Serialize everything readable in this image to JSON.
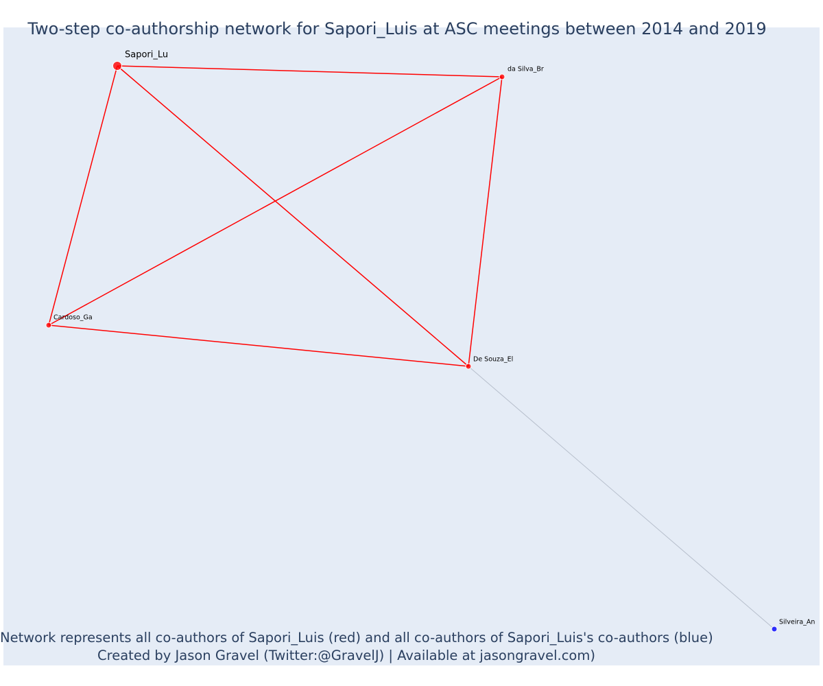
{
  "title": "Two-step co-authorship network for Sapori_Luis at ASC meetings between 2014 and 2019",
  "footer": {
    "line1": "Network represents all co-authors of Sapori_Luis (red) and all co-authors of Sapori_Luis's co-authors (blue)",
    "line2": "Created by Jason Gravel (Twitter:@GravelJ) | Available at jasongravel.com)"
  },
  "colors": {
    "plot_background": "#e5ecf6",
    "direct_coauthor": "#ff0000",
    "second_step_coauthor": "#0000ff",
    "direct_edge": "#ff0000",
    "second_step_edge": "#b7bfcc",
    "text": "#2a3f5f"
  },
  "nodes": [
    {
      "id": "Sapori_Lu",
      "label": "Sapori_Lu",
      "group": "focal"
    },
    {
      "id": "da Silva_Br",
      "label": "da Silva_Br",
      "group": "direct"
    },
    {
      "id": "Cardoso_Ga",
      "label": "Cardoso_Ga",
      "group": "direct"
    },
    {
      "id": "De Souza_El",
      "label": "De Souza_El",
      "group": "direct"
    },
    {
      "id": "Silveira_An",
      "label": "Silveira_An",
      "group": "second"
    }
  ],
  "edges": [
    {
      "source": "Sapori_Lu",
      "target": "da Silva_Br",
      "group": "direct"
    },
    {
      "source": "Sapori_Lu",
      "target": "Cardoso_Ga",
      "group": "direct"
    },
    {
      "source": "Sapori_Lu",
      "target": "De Souza_El",
      "group": "direct"
    },
    {
      "source": "da Silva_Br",
      "target": "Cardoso_Ga",
      "group": "direct"
    },
    {
      "source": "da Silva_Br",
      "target": "De Souza_El",
      "group": "direct"
    },
    {
      "source": "Cardoso_Ga",
      "target": "De Souza_El",
      "group": "direct"
    },
    {
      "source": "De Souza_El",
      "target": "Silveira_An",
      "group": "second"
    }
  ]
}
